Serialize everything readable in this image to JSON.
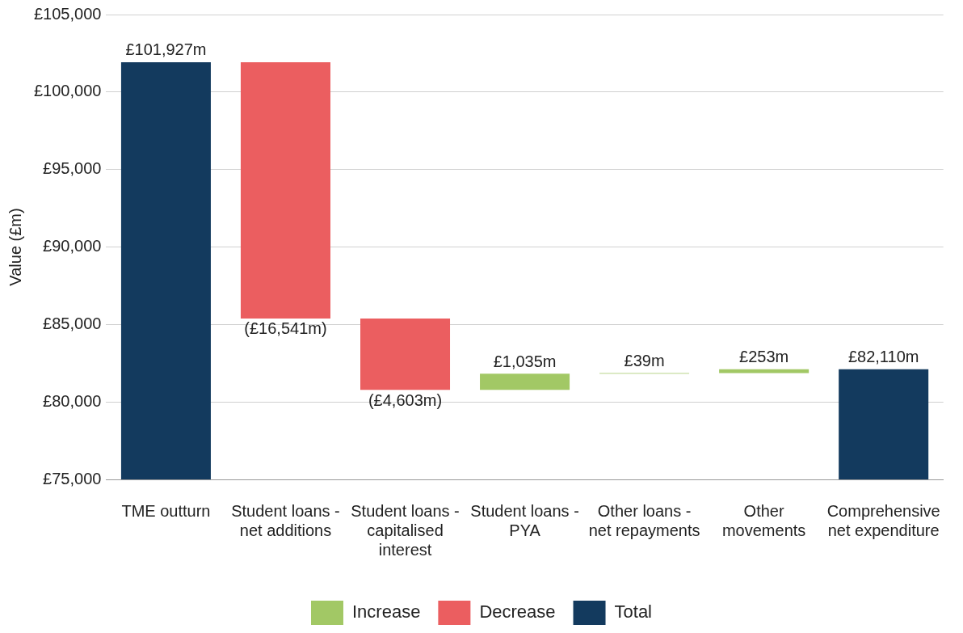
{
  "chart_data": {
    "type": "bar",
    "ylabel": "Value (£m)",
    "categories": [
      "TME outturn",
      "Student loans - net additions",
      "Student loans - capitalised interest",
      "Student loans - PYA",
      "Other loans - net repayments",
      "Other movements",
      "Comprehensive net expenditure"
    ],
    "series": [
      {
        "name": "Increase",
        "color": "#a2c865",
        "base": [
          null,
          null,
          null,
          80783,
          81818,
          81857,
          null
        ],
        "values": [
          null,
          null,
          null,
          1035,
          39,
          253,
          null
        ],
        "value_labels": [
          null,
          null,
          null,
          "£1,035m",
          "£39m",
          "£253m",
          null
        ]
      },
      {
        "name": "Decrease",
        "color": "#eb5e60",
        "base": [
          null,
          101927,
          85386,
          null,
          null,
          null,
          null
        ],
        "values": [
          null,
          -16541,
          -4603,
          null,
          null,
          null,
          null
        ],
        "value_labels": [
          null,
          "(£16,541m)",
          "(£4,603m)",
          null,
          null,
          null,
          null
        ]
      },
      {
        "name": "Total",
        "color": "#133a5e",
        "base": [
          75000,
          null,
          null,
          null,
          null,
          null,
          75000
        ],
        "values": [
          26927,
          null,
          null,
          null,
          null,
          null,
          7110
        ],
        "value_labels": [
          "£101,927m",
          null,
          null,
          null,
          null,
          null,
          "£82,110m"
        ]
      }
    ],
    "ylim": [
      75000,
      105000
    ],
    "yticks": [
      {
        "value": 75000,
        "label": "£75,000"
      },
      {
        "value": 80000,
        "label": "£80,000"
      },
      {
        "value": 85000,
        "label": "£85,000"
      },
      {
        "value": 90000,
        "label": "£90,000"
      },
      {
        "value": 95000,
        "label": "£95,000"
      },
      {
        "value": 100000,
        "label": "£100,000"
      },
      {
        "value": 105000,
        "label": "£105,000"
      }
    ],
    "grid": "y",
    "legend": "bottom"
  }
}
